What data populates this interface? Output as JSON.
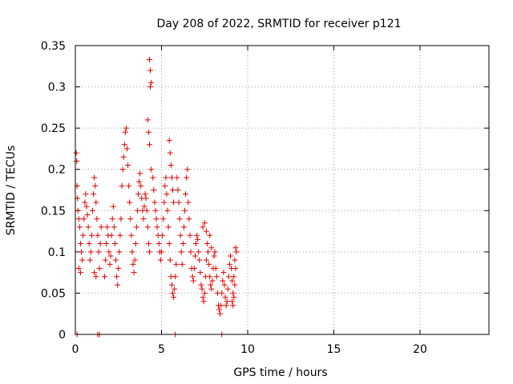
{
  "chart_data": {
    "type": "scatter",
    "title": "Day 208 of 2022, SRMTID for receiver p121",
    "xlabel": "GPS time / hours",
    "ylabel": "SRMTID / TECUs",
    "xlim": [
      0,
      24
    ],
    "ylim": [
      0,
      0.35
    ],
    "grid": true,
    "x_ticks": [
      0,
      5,
      10,
      15,
      20
    ],
    "x_tick_labels": [
      "0",
      "5",
      "10",
      "15",
      "20"
    ],
    "y_ticks": [
      0,
      0.05,
      0.1,
      0.15,
      0.2,
      0.25,
      0.3,
      0.35
    ],
    "y_tick_labels": [
      "0",
      "0.05",
      "0.1",
      "0.15",
      "0.2",
      "0.25",
      "0.3",
      "0.35"
    ],
    "marker": "plus",
    "color": "#e00000",
    "series": [
      {
        "name": "p121",
        "points": [
          [
            0.05,
            0.22
          ],
          [
            0.08,
            0.21
          ],
          [
            0.1,
            0.18
          ],
          [
            0.12,
            0.165
          ],
          [
            0.15,
            0.15
          ],
          [
            0.2,
            0.14
          ],
          [
            0.25,
            0.13
          ],
          [
            0.3,
            0.11
          ],
          [
            0.35,
            0.1
          ],
          [
            0.4,
            0.09
          ],
          [
            0.2,
            0.08
          ],
          [
            0.3,
            0.075
          ],
          [
            0.45,
            0.12
          ],
          [
            0.5,
            0.14
          ],
          [
            0.55,
            0.16
          ],
          [
            0.6,
            0.17
          ],
          [
            0.65,
            0.155
          ],
          [
            0.7,
            0.145
          ],
          [
            0.75,
            0.13
          ],
          [
            0.8,
            0.11
          ],
          [
            0.85,
            0.09
          ],
          [
            0.9,
            0.1
          ],
          [
            0.95,
            0.12
          ],
          [
            1.0,
            0.15
          ],
          [
            1.05,
            0.17
          ],
          [
            1.1,
            0.19
          ],
          [
            1.15,
            0.18
          ],
          [
            1.2,
            0.16
          ],
          [
            1.25,
            0.14
          ],
          [
            1.3,
            0.12
          ],
          [
            1.35,
            0.1
          ],
          [
            1.4,
            0.08
          ],
          [
            1.45,
            0.11
          ],
          [
            1.5,
            0.13
          ],
          [
            1.2,
            0.07
          ],
          [
            1.1,
            0.075
          ],
          [
            0.1,
            0.0
          ],
          [
            1.3,
            0.0
          ],
          [
            1.4,
            0.0
          ],
          [
            5.8,
            0.0
          ],
          [
            8.5,
            0.0
          ],
          [
            1.7,
            0.07
          ],
          [
            1.75,
            0.09
          ],
          [
            1.8,
            0.11
          ],
          [
            1.85,
            0.13
          ],
          [
            1.9,
            0.12
          ],
          [
            1.95,
            0.1
          ],
          [
            2.0,
            0.085
          ],
          [
            2.05,
            0.095
          ],
          [
            2.1,
            0.12
          ],
          [
            2.15,
            0.14
          ],
          [
            2.2,
            0.155
          ],
          [
            2.25,
            0.13
          ],
          [
            2.3,
            0.11
          ],
          [
            2.35,
            0.09
          ],
          [
            2.4,
            0.07
          ],
          [
            2.45,
            0.06
          ],
          [
            2.5,
            0.08
          ],
          [
            2.55,
            0.1
          ],
          [
            2.6,
            0.12
          ],
          [
            2.65,
            0.14
          ],
          [
            2.7,
            0.18
          ],
          [
            2.75,
            0.2
          ],
          [
            2.8,
            0.215
          ],
          [
            2.85,
            0.23
          ],
          [
            2.9,
            0.245
          ],
          [
            2.95,
            0.25
          ],
          [
            3.0,
            0.225
          ],
          [
            3.05,
            0.205
          ],
          [
            3.1,
            0.18
          ],
          [
            3.15,
            0.16
          ],
          [
            3.2,
            0.14
          ],
          [
            3.25,
            0.12
          ],
          [
            3.3,
            0.1
          ],
          [
            3.35,
            0.085
          ],
          [
            3.4,
            0.075
          ],
          [
            3.45,
            0.09
          ],
          [
            3.5,
            0.11
          ],
          [
            3.55,
            0.13
          ],
          [
            3.6,
            0.15
          ],
          [
            3.65,
            0.17
          ],
          [
            3.7,
            0.185
          ],
          [
            3.75,
            0.195
          ],
          [
            3.8,
            0.18
          ],
          [
            3.85,
            0.165
          ],
          [
            3.9,
            0.15
          ],
          [
            3.95,
            0.14
          ],
          [
            4.0,
            0.155
          ],
          [
            4.05,
            0.17
          ],
          [
            4.1,
            0.165
          ],
          [
            4.15,
            0.15
          ],
          [
            4.2,
            0.13
          ],
          [
            4.25,
            0.11
          ],
          [
            4.3,
            0.1
          ],
          [
            4.3,
            0.333
          ],
          [
            4.35,
            0.32
          ],
          [
            4.4,
            0.305
          ],
          [
            4.35,
            0.3
          ],
          [
            4.2,
            0.26
          ],
          [
            4.25,
            0.245
          ],
          [
            4.3,
            0.23
          ],
          [
            4.4,
            0.2
          ],
          [
            4.5,
            0.19
          ],
          [
            4.55,
            0.175
          ],
          [
            4.6,
            0.16
          ],
          [
            4.65,
            0.15
          ],
          [
            4.7,
            0.14
          ],
          [
            4.75,
            0.13
          ],
          [
            4.8,
            0.12
          ],
          [
            4.85,
            0.11
          ],
          [
            4.9,
            0.1
          ],
          [
            4.95,
            0.09
          ],
          [
            5.0,
            0.1
          ],
          [
            5.05,
            0.12
          ],
          [
            5.1,
            0.14
          ],
          [
            5.15,
            0.16
          ],
          [
            5.2,
            0.18
          ],
          [
            5.25,
            0.19
          ],
          [
            5.3,
            0.17
          ],
          [
            5.35,
            0.15
          ],
          [
            5.4,
            0.13
          ],
          [
            5.45,
            0.11
          ],
          [
            5.5,
            0.09
          ],
          [
            5.55,
            0.07
          ],
          [
            5.6,
            0.06
          ],
          [
            5.65,
            0.05
          ],
          [
            5.7,
            0.045
          ],
          [
            5.75,
            0.055
          ],
          [
            5.8,
            0.07
          ],
          [
            5.85,
            0.085
          ],
          [
            5.45,
            0.235
          ],
          [
            5.5,
            0.22
          ],
          [
            5.55,
            0.205
          ],
          [
            5.6,
            0.19
          ],
          [
            5.65,
            0.175
          ],
          [
            5.7,
            0.16
          ],
          [
            5.9,
            0.19
          ],
          [
            5.95,
            0.175
          ],
          [
            6.0,
            0.16
          ],
          [
            6.05,
            0.14
          ],
          [
            6.1,
            0.12
          ],
          [
            6.15,
            0.1
          ],
          [
            6.2,
            0.085
          ],
          [
            6.25,
            0.11
          ],
          [
            6.3,
            0.13
          ],
          [
            6.35,
            0.15
          ],
          [
            6.4,
            0.17
          ],
          [
            6.45,
            0.19
          ],
          [
            6.5,
            0.2
          ],
          [
            6.55,
            0.16
          ],
          [
            6.6,
            0.14
          ],
          [
            6.65,
            0.12
          ],
          [
            6.7,
            0.1
          ],
          [
            6.75,
            0.08
          ],
          [
            6.8,
            0.07
          ],
          [
            6.85,
            0.065
          ],
          [
            6.9,
            0.08
          ],
          [
            6.95,
            0.095
          ],
          [
            7.0,
            0.11
          ],
          [
            7.05,
            0.12
          ],
          [
            7.1,
            0.115
          ],
          [
            7.15,
            0.1
          ],
          [
            7.2,
            0.09
          ],
          [
            7.25,
            0.075
          ],
          [
            7.3,
            0.06
          ],
          [
            7.35,
            0.055
          ],
          [
            7.4,
            0.045
          ],
          [
            7.45,
            0.04
          ],
          [
            7.5,
            0.05
          ],
          [
            7.55,
            0.07
          ],
          [
            7.6,
            0.09
          ],
          [
            7.65,
            0.11
          ],
          [
            7.7,
            0.1
          ],
          [
            7.75,
            0.085
          ],
          [
            7.8,
            0.07
          ],
          [
            7.85,
            0.06
          ],
          [
            7.9,
            0.055
          ],
          [
            7.95,
            0.065
          ],
          [
            8.0,
            0.08
          ],
          [
            8.05,
            0.095
          ],
          [
            8.1,
            0.1
          ],
          [
            8.15,
            0.08
          ],
          [
            7.4,
            0.13
          ],
          [
            7.5,
            0.135
          ],
          [
            7.6,
            0.125
          ],
          [
            7.8,
            0.12
          ],
          [
            7.9,
            0.105
          ],
          [
            8.2,
            0.07
          ],
          [
            8.25,
            0.05
          ],
          [
            8.3,
            0.035
          ],
          [
            8.35,
            0.03
          ],
          [
            8.4,
            0.025
          ],
          [
            8.45,
            0.035
          ],
          [
            8.5,
            0.05
          ],
          [
            8.55,
            0.065
          ],
          [
            8.6,
            0.075
          ],
          [
            8.65,
            0.06
          ],
          [
            8.7,
            0.045
          ],
          [
            8.75,
            0.035
          ],
          [
            8.8,
            0.04
          ],
          [
            8.85,
            0.055
          ],
          [
            8.9,
            0.07
          ],
          [
            8.95,
            0.085
          ],
          [
            9.0,
            0.095
          ],
          [
            9.05,
            0.08
          ],
          [
            9.1,
            0.065
          ],
          [
            9.15,
            0.05
          ],
          [
            9.2,
            0.045
          ],
          [
            9.25,
            0.06
          ],
          [
            9.3,
            0.08
          ],
          [
            9.35,
            0.1
          ],
          [
            9.3,
            0.105
          ],
          [
            9.25,
            0.09
          ],
          [
            9.2,
            0.07
          ],
          [
            9.1,
            0.04
          ],
          [
            9.15,
            0.035
          ]
        ]
      }
    ]
  }
}
